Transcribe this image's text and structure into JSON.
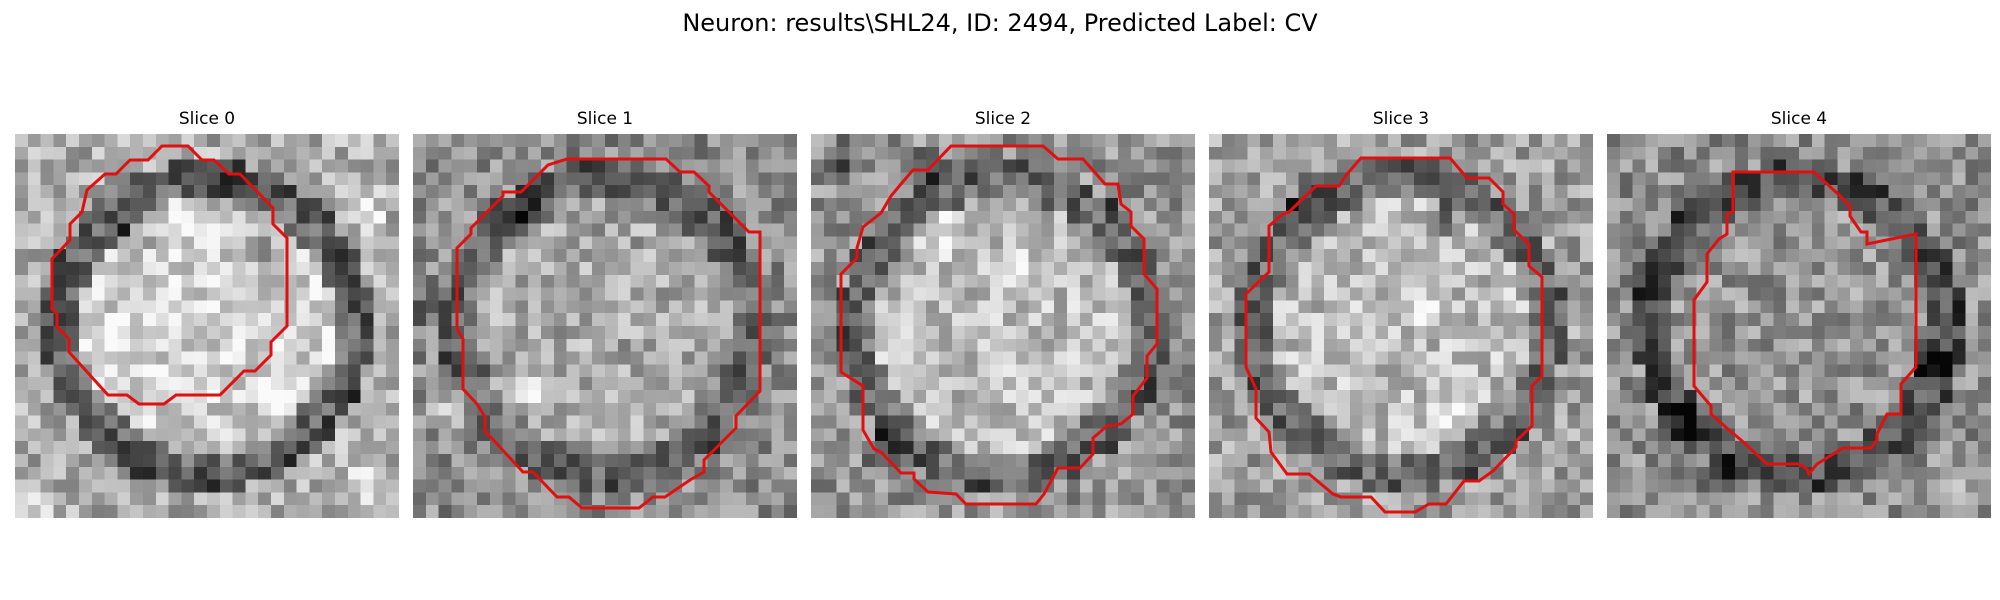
{
  "figure": {
    "title": "Neuron: results\\SHL24, ID: 2494, Predicted Label: CV",
    "contour_color": "#e01010"
  },
  "panels": [
    {
      "title": "Slice 0",
      "center_brightness": 0.82,
      "ring_brightness": 0.28,
      "outer_brightness": 0.68,
      "dark_spots": [
        [
          0.57,
          0.16
        ],
        [
          0.63,
          0.3
        ],
        [
          0.3,
          0.27
        ]
      ],
      "light_spots": [
        [
          0.92,
          0.2
        ],
        [
          0.05,
          0.95
        ],
        [
          0.9,
          0.92
        ]
      ]
    },
    {
      "title": "Slice 1",
      "center_brightness": 0.66,
      "ring_brightness": 0.34,
      "outer_brightness": 0.55,
      "dark_spots": [
        [
          0.03,
          0.45
        ],
        [
          0.3,
          0.2
        ]
      ],
      "light_spots": [
        [
          0.3,
          0.66
        ],
        [
          0.1,
          0.7
        ]
      ]
    },
    {
      "title": "Slice 2",
      "center_brightness": 0.74,
      "ring_brightness": 0.32,
      "outer_brightness": 0.58,
      "dark_spots": [
        [
          0.08,
          0.07
        ],
        [
          0.3,
          0.1
        ],
        [
          0.2,
          0.83
        ]
      ],
      "light_spots": [
        [
          0.35,
          0.26
        ],
        [
          0.55,
          0.36
        ]
      ]
    },
    {
      "title": "Slice 3",
      "center_brightness": 0.74,
      "ring_brightness": 0.34,
      "outer_brightness": 0.63,
      "dark_spots": [
        [
          0.26,
          0.17
        ],
        [
          0.6,
          0.23
        ]
      ],
      "light_spots": [
        [
          0.55,
          0.46
        ],
        [
          0.63,
          0.72
        ]
      ]
    },
    {
      "title": "Slice 4",
      "center_brightness": 0.58,
      "ring_brightness": 0.26,
      "outer_brightness": 0.56,
      "dark_spots": [
        [
          0.1,
          0.4
        ],
        [
          0.2,
          0.75
        ],
        [
          0.3,
          0.88
        ],
        [
          0.84,
          0.6
        ]
      ],
      "light_spots": [
        [
          0.82,
          0.2
        ],
        [
          0.9,
          0.9
        ]
      ]
    }
  ]
}
